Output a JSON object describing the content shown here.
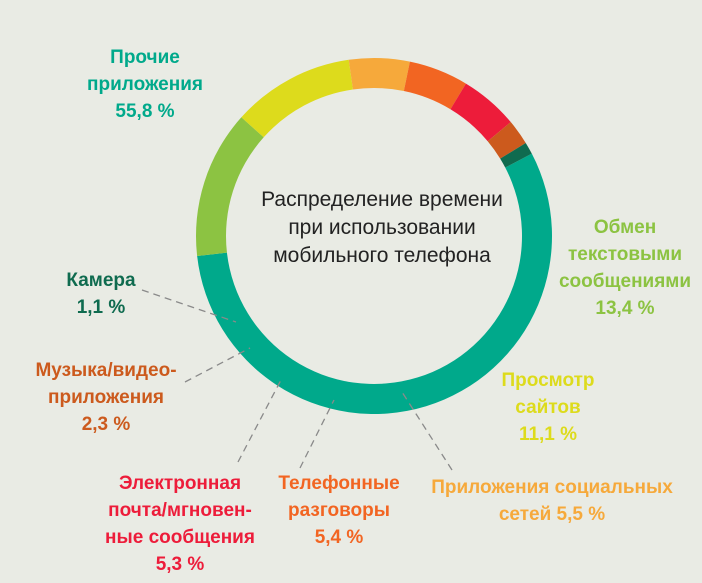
{
  "chart_data": {
    "type": "pie",
    "style": "donut",
    "title_lines": [
      "Распределение времени",
      "при использовании",
      "мобильного телефона"
    ],
    "unit": "%",
    "slices": [
      {
        "key": "other",
        "lines": [
          "Прочие",
          "приложения",
          "55,8 %"
        ],
        "value": 55.8,
        "color": "#00a98b"
      },
      {
        "key": "sms",
        "lines": [
          "Обмен",
          "текстовыми",
          "сообщениями",
          "13,4 %"
        ],
        "value": 13.4,
        "color": "#8cc342"
      },
      {
        "key": "web",
        "lines": [
          "Просмотр",
          "сайтов",
          "11,1 %"
        ],
        "value": 11.1,
        "color": "#dddb1c"
      },
      {
        "key": "social",
        "lines": [
          "Приложения социальных",
          "сетей 5,5 %"
        ],
        "value": 5.5,
        "color": "#f6a93b"
      },
      {
        "key": "calls",
        "lines": [
          "Телефонные",
          "разговоры",
          "5,4 %"
        ],
        "value": 5.4,
        "color": "#f26522"
      },
      {
        "key": "email",
        "lines": [
          "Электронная",
          "почта/мгновен-",
          "ные сообщения",
          "5,3 %"
        ],
        "value": 5.3,
        "color": "#ed1c3a"
      },
      {
        "key": "music",
        "lines": [
          "Музыка/видео-",
          "приложения",
          "2,3 %"
        ],
        "value": 2.3,
        "color": "#cc5a1d"
      },
      {
        "key": "camera",
        "lines": [
          "Камера",
          "1,1 %"
        ],
        "value": 1.1,
        "color": "#0f6b4f"
      }
    ]
  }
}
